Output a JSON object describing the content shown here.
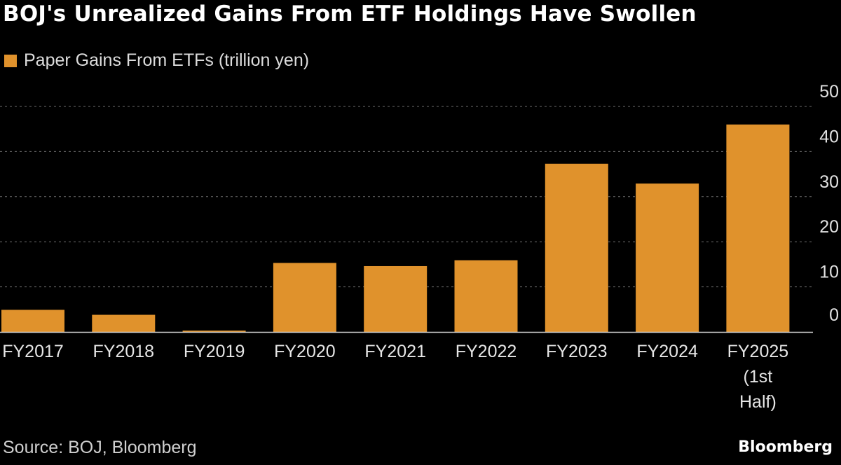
{
  "header": {
    "title": "BOJ's Unrealized Gains From ETF Holdings Have Swollen"
  },
  "footer": {
    "source": "Source: BOJ, Bloomberg",
    "brand": "Bloomberg"
  },
  "colors": {
    "background": "#000000",
    "bar": "#e0922c",
    "grid": "#6e6e6e",
    "text": "#ffffff"
  },
  "chart_data": {
    "type": "bar",
    "title": "BOJ's Unrealized Gains From ETF Holdings Have Swollen",
    "xlabel": "",
    "ylabel": "",
    "legend_position": "top-left",
    "grid": true,
    "y_axis_side": "right",
    "ylim": [
      0,
      50
    ],
    "yticks": [
      0,
      10,
      20,
      30,
      40,
      50
    ],
    "categories": [
      [
        "FY2017"
      ],
      [
        "FY2018"
      ],
      [
        "FY2019"
      ],
      [
        "FY2020"
      ],
      [
        "FY2021"
      ],
      [
        "FY2022"
      ],
      [
        "FY2023"
      ],
      [
        "FY2024"
      ],
      [
        "FY2025",
        "(1st",
        "Half)"
      ]
    ],
    "series": [
      {
        "name": "Paper Gains From ETFs (trillion yen)",
        "color": "#e0922c",
        "values": [
          4.9,
          3.8,
          0.3,
          15.3,
          14.6,
          15.9,
          37.3,
          32.9,
          46.0
        ]
      }
    ]
  }
}
